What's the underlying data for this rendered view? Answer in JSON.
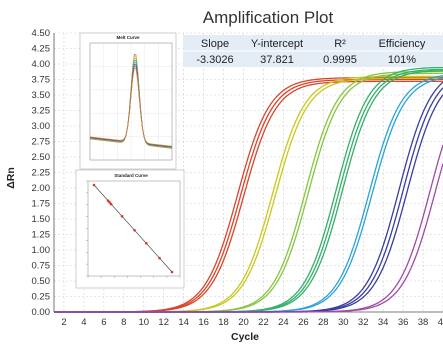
{
  "chart_data": {
    "type": "line",
    "title": "Amplification Plot",
    "xlabel": "Cycle",
    "ylabel": "ΔRn",
    "xlim": [
      1,
      40
    ],
    "ylim": [
      0,
      4.5
    ],
    "x_ticks": [
      2,
      4,
      6,
      8,
      10,
      12,
      14,
      16,
      18,
      20,
      22,
      24,
      26,
      28,
      30,
      32,
      34,
      36,
      38,
      40
    ],
    "y_ticks": [
      "0.00",
      "0.25",
      "0.50",
      "0.75",
      "1.00",
      "1.25",
      "1.50",
      "1.75",
      "2.00",
      "2.25",
      "2.50",
      "2.75",
      "3.00",
      "3.25",
      "3.50",
      "3.75",
      "4.00",
      "4.25",
      "4.50"
    ],
    "grid": true,
    "series": [
      {
        "color": "#d9452b",
        "midpoints": [
          19.4,
          19.7,
          20.0
        ],
        "plateau": [
          3.78,
          3.75,
          3.72
        ]
      },
      {
        "color": "#c8c81e",
        "midpoints": [
          22.9,
          23.2
        ],
        "plateau": [
          3.8,
          3.77
        ]
      },
      {
        "color": "#86c540",
        "midpoints": [
          26.2,
          26.5
        ],
        "plateau": [
          3.88,
          3.85
        ]
      },
      {
        "color": "#33b06a",
        "midpoints": [
          29.3,
          29.6,
          29.9
        ],
        "plateau": [
          3.95,
          3.92,
          3.9
        ]
      },
      {
        "color": "#2aa3d6",
        "midpoints": [
          32.6,
          32.9
        ],
        "plateau": [
          3.85,
          3.82
        ]
      },
      {
        "color": "#3a3f9e",
        "midpoints": [
          35.6,
          36.0,
          36.4
        ],
        "plateau": [
          3.95,
          3.92,
          3.88
        ]
      },
      {
        "color": "#a04aa8",
        "midpoints": [
          38.7,
          39.2
        ],
        "plateau": [
          3.9,
          3.85
        ]
      }
    ],
    "stats_table": {
      "headers": [
        "Slope",
        "Y-intercept",
        "R²",
        "Efficiency"
      ],
      "values": [
        "-3.3026",
        "37.821",
        "0.9995",
        "101%"
      ]
    },
    "insets": [
      {
        "title": "Melt Curve"
      },
      {
        "title": "Standard Curve"
      }
    ]
  }
}
